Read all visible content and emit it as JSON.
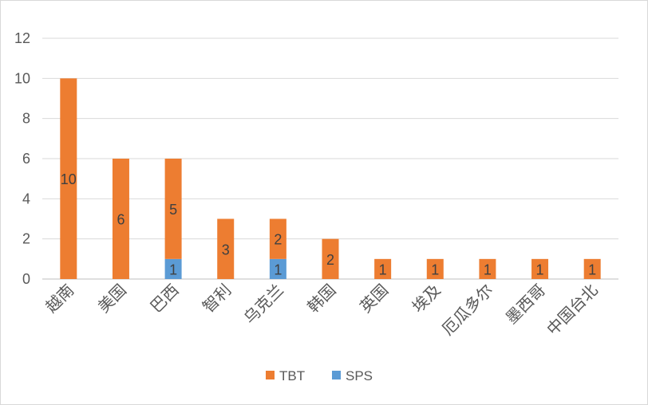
{
  "chart_data": {
    "type": "bar",
    "stacked": true,
    "title": "",
    "xlabel": "",
    "ylabel": "",
    "ylim": [
      0,
      12
    ],
    "yticks": [
      0,
      2,
      4,
      6,
      8,
      10,
      12
    ],
    "grid": true,
    "legend_position": "bottom",
    "categories": [
      "越南",
      "美国",
      "巴西",
      "智利",
      "乌克兰",
      "韩国",
      "英国",
      "埃及",
      "厄瓜多尔",
      "墨西哥",
      "中国台北"
    ],
    "series": [
      {
        "name": "SPS",
        "color": "#5B9BD5",
        "values": [
          0,
          0,
          1,
          0,
          1,
          0,
          0,
          0,
          0,
          0,
          0
        ]
      },
      {
        "name": "TBT",
        "color": "#ED7D31",
        "values": [
          10,
          6,
          5,
          3,
          2,
          2,
          1,
          1,
          1,
          1,
          1
        ]
      }
    ],
    "legend_order": [
      "TBT",
      "SPS"
    ]
  }
}
